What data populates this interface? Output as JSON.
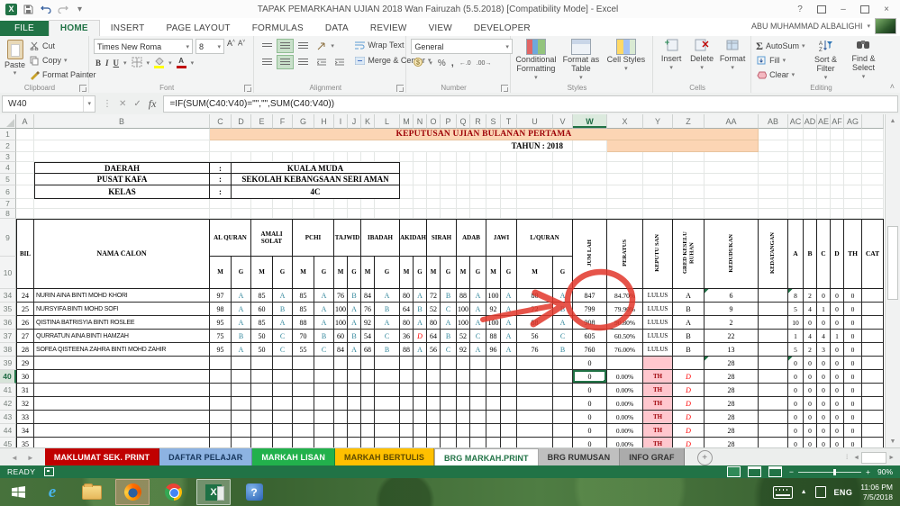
{
  "colors": {
    "accent": "#217346",
    "peach": "#fcd5b4",
    "banner_red": "#9c0006",
    "pink": "#ffc7ce",
    "grade_teal": "#31869b",
    "annotation_red": "#e2372b"
  },
  "title_bar": {
    "title": "TAPAK PEMARKAHAN UJIAN 2018 Wan Fairuzah (5.5.2018)  [Compatibility Mode] - Excel",
    "help": "?",
    "minimize": "–",
    "close": "×"
  },
  "quick_access": {
    "icons": [
      "excel-logo",
      "save",
      "undo",
      "redo",
      "customize"
    ]
  },
  "ribbon": {
    "tabs": [
      "FILE",
      "HOME",
      "INSERT",
      "PAGE LAYOUT",
      "FORMULAS",
      "DATA",
      "REVIEW",
      "VIEW",
      "DEVELOPER"
    ],
    "active_tab": "HOME",
    "user": "ABU MUHAMMAD ALBALIGHI",
    "clipboard": {
      "paste": "Paste",
      "cut": "Cut",
      "copy": "Copy",
      "format_painter": "Format Painter",
      "label": "Clipboard"
    },
    "font": {
      "name": "Times New Roma",
      "size": "8",
      "bold": "B",
      "italic": "I",
      "underline": "U",
      "label": "Font"
    },
    "alignment": {
      "wrap": "Wrap Text",
      "merge": "Merge & Center",
      "label": "Alignment"
    },
    "number": {
      "format": "General",
      "percent": "%",
      "label": "Number"
    },
    "styles": {
      "conditional": "Conditional Formatting",
      "table": "Format as Table",
      "cell": "Cell Styles",
      "label": "Styles"
    },
    "cells": {
      "insert": "Insert",
      "delete": "Delete",
      "format": "Format",
      "label": "Cells"
    },
    "editing": {
      "autosum": "AutoSum",
      "fill": "Fill",
      "clear": "Clear",
      "sort": "Sort & Filter",
      "find": "Find & Select",
      "label": "Editing"
    }
  },
  "formula_bar": {
    "name_box": "W40",
    "formula": "=IF(SUM(C40:V40)=\"\",\"\",SUM(C40:V40))"
  },
  "sheet": {
    "col_letters": [
      "A",
      "B",
      "C",
      "D",
      "E",
      "F",
      "G",
      "H",
      "I",
      "J",
      "K",
      "L",
      "M",
      "N",
      "O",
      "P",
      "Q",
      "R",
      "S",
      "T",
      "U",
      "V",
      "W",
      "X",
      "Y",
      "Z",
      "AA",
      "AB",
      "AC",
      "AD",
      "AE",
      "AF",
      "AG"
    ],
    "selected_column": "W",
    "selected_row": 40,
    "banner": "KEPUTUSAN UJIAN BULANAN PERTAMA",
    "tahun": "TAHUN   :   2018",
    "info_rows": [
      {
        "label": "DAERAH",
        "sep": ":",
        "value": "KUALA MUDA"
      },
      {
        "label": "PUSAT KAFA",
        "sep": ":",
        "value": "SEKOLAH KEBANGSAAN SERI AMAN"
      },
      {
        "label": "KELAS",
        "sep": ":",
        "value": "4C"
      }
    ],
    "header": {
      "bil": "BIL",
      "nama": "NAMA CALON",
      "mark": "M",
      "grade": "G",
      "subjects": [
        "AL QURAN",
        "AMALI SOLAT",
        "PCHI",
        "TAJWID",
        "IBADAH",
        "AKIDAH",
        "SIRAH",
        "ADAB",
        "JAWI",
        "L/QURAN"
      ],
      "vertical": [
        "JUM LAH",
        "PERATUS",
        "KEPUTU SAN",
        "GRED KESELU RUHAN",
        "KEDUDUKAN",
        "KEDATANGAN"
      ],
      "counts": [
        "A",
        "B",
        "C",
        "D",
        "TH",
        "CAT"
      ]
    },
    "rows": [
      {
        "n": 34,
        "bil": "24",
        "name": "NURIN AINA BINTI MOHD KHORI",
        "marks": [
          "97",
          "A",
          "85",
          "A",
          "85",
          "A",
          "76",
          "B",
          "84",
          "A",
          "80",
          "A",
          "72",
          "B",
          "88",
          "A",
          "100",
          "A",
          "80",
          "A"
        ],
        "jumlah": "847",
        "peratus": "84.70%",
        "keputusan": "LULUS",
        "gred": "A",
        "kedudukan": "6",
        "kedatangan": "",
        "counts": [
          "8",
          "2",
          "0",
          "0",
          "0"
        ],
        "cat": "",
        "flag": true
      },
      {
        "n": 35,
        "bil": "25",
        "name": "NURSYIFA BINTI MOHD SOFI",
        "marks": [
          "98",
          "A",
          "60",
          "B",
          "85",
          "A",
          "100",
          "A",
          "76",
          "B",
          "64",
          "B",
          "52",
          "C",
          "100",
          "A",
          "92",
          "A",
          "72",
          "B"
        ],
        "jumlah": "799",
        "peratus": "79.90%",
        "keputusan": "LULUS",
        "gred": "B",
        "kedudukan": "9",
        "kedatangan": "",
        "counts": [
          "5",
          "4",
          "1",
          "0",
          "0"
        ],
        "cat": ""
      },
      {
        "n": 36,
        "bil": "26",
        "name": "QISTINA BATRISYIA BINTI ROSLEE",
        "marks": [
          "95",
          "A",
          "85",
          "A",
          "88",
          "A",
          "100",
          "A",
          "92",
          "A",
          "80",
          "A",
          "80",
          "A",
          "100",
          "A",
          "100",
          "A",
          "88",
          "A"
        ],
        "jumlah": "908",
        "peratus": "90.80%",
        "keputusan": "LULUS",
        "gred": "A",
        "kedudukan": "2",
        "kedatangan": "",
        "counts": [
          "10",
          "0",
          "0",
          "0",
          "0"
        ],
        "cat": ""
      },
      {
        "n": 37,
        "bil": "27",
        "name": "QURRATUN AINA BINTI HAMZAH",
        "marks": [
          "75",
          "B",
          "50",
          "C",
          "70",
          "B",
          "60",
          "B",
          "54",
          "C",
          "36",
          "D",
          "64",
          "B",
          "52",
          "C",
          "88",
          "A",
          "56",
          "C"
        ],
        "jumlah": "605",
        "peratus": "60.50%",
        "keputusan": "LULUS",
        "gred": "B",
        "kedudukan": "22",
        "kedatangan": "",
        "counts": [
          "1",
          "4",
          "4",
          "1",
          "0"
        ],
        "cat": ""
      },
      {
        "n": 38,
        "bil": "28",
        "name": "SOFEA QISTEENA ZAHRA BINTI MOHD ZAHIR",
        "marks": [
          "95",
          "A",
          "50",
          "C",
          "55",
          "C",
          "84",
          "A",
          "68",
          "B",
          "88",
          "A",
          "56",
          "C",
          "92",
          "A",
          "96",
          "A",
          "76",
          "B"
        ],
        "jumlah": "760",
        "peratus": "76.00%",
        "keputusan": "LULUS",
        "gred": "B",
        "kedudukan": "13",
        "kedatangan": "",
        "counts": [
          "5",
          "2",
          "3",
          "0",
          "0"
        ],
        "cat": ""
      },
      {
        "n": 39,
        "bil": "29",
        "name": "",
        "marks": [],
        "jumlah": "0",
        "peratus": "",
        "keputusan": "",
        "keputusan_pink": true,
        "gred": "",
        "kedudukan": "28",
        "kedatangan": "",
        "counts": [
          "0",
          "0",
          "0",
          "0",
          "0"
        ],
        "cat": "",
        "flag": true
      },
      {
        "n": 40,
        "bil": "30",
        "name": "",
        "marks": [],
        "jumlah": "0",
        "peratus": "0.00%",
        "keputusan": "TH",
        "keputusan_pink": true,
        "gred": "D",
        "kedudukan": "28",
        "kedatangan": "",
        "counts": [
          "0",
          "0",
          "0",
          "0",
          "0"
        ],
        "cat": ""
      },
      {
        "n": 41,
        "bil": "31",
        "name": "",
        "marks": [],
        "jumlah": "0",
        "peratus": "0.00%",
        "keputusan": "TH",
        "keputusan_pink": true,
        "gred": "D",
        "kedudukan": "28",
        "kedatangan": "",
        "counts": [
          "0",
          "0",
          "0",
          "0",
          "0"
        ],
        "cat": ""
      },
      {
        "n": 42,
        "bil": "32",
        "name": "",
        "marks": [],
        "jumlah": "0",
        "peratus": "0.00%",
        "keputusan": "TH",
        "keputusan_pink": true,
        "gred": "D",
        "kedudukan": "28",
        "kedatangan": "",
        "counts": [
          "0",
          "0",
          "0",
          "0",
          "0"
        ],
        "cat": ""
      },
      {
        "n": 43,
        "bil": "33",
        "name": "",
        "marks": [],
        "jumlah": "0",
        "peratus": "0.00%",
        "keputusan": "TH",
        "keputusan_pink": true,
        "gred": "D",
        "kedudukan": "28",
        "kedatangan": "",
        "counts": [
          "0",
          "0",
          "0",
          "0",
          "0"
        ],
        "cat": ""
      },
      {
        "n": 44,
        "bil": "34",
        "name": "",
        "marks": [],
        "jumlah": "0",
        "peratus": "0.00%",
        "keputusan": "TH",
        "keputusan_pink": true,
        "gred": "D",
        "kedudukan": "28",
        "kedatangan": "",
        "counts": [
          "0",
          "0",
          "0",
          "0",
          "0"
        ],
        "cat": ""
      },
      {
        "n": 45,
        "bil": "35",
        "name": "",
        "marks": [],
        "jumlah": "0",
        "peratus": "0.00%",
        "keputusan": "TH",
        "keputusan_pink": true,
        "gred": "D",
        "kedudukan": "28",
        "kedatangan": "",
        "counts": [
          "0",
          "0",
          "0",
          "0",
          "0"
        ],
        "cat": ""
      }
    ]
  },
  "annotations": {
    "color": "#e2372b",
    "shapes": [
      "freehand-circle-around-jumlah-zeros-rows-39-43",
      "freehand-arrow-pointing-to-circle"
    ]
  },
  "sheet_tabs": [
    {
      "label": "MAKLUMAT SEK. PRINT",
      "bg": "#c00000",
      "fg": "#ffffff"
    },
    {
      "label": "DAFTAR PELAJAR",
      "bg": "#8db3e2",
      "fg": "#17375e"
    },
    {
      "label": "MARKAH LISAN",
      "bg": "#22b14c",
      "fg": "#ffffff"
    },
    {
      "label": "MARKAH BERTULIS",
      "bg": "#ffc000",
      "fg": "#5f4a00"
    },
    {
      "label": "BRG MARKAH.PRINT",
      "bg": "#ffffff",
      "fg": "#217346",
      "active": true
    },
    {
      "label": "BRG RUMUSAN",
      "bg": "#bfbfbf",
      "fg": "#333333"
    },
    {
      "label": "INFO GRAF",
      "bg": "#ababab",
      "fg": "#333333"
    }
  ],
  "status_bar": {
    "ready": "READY",
    "zoom": "90%"
  },
  "taskbar": {
    "lang": "ENG",
    "time": "11:06 PM",
    "date": "7/5/2018"
  }
}
